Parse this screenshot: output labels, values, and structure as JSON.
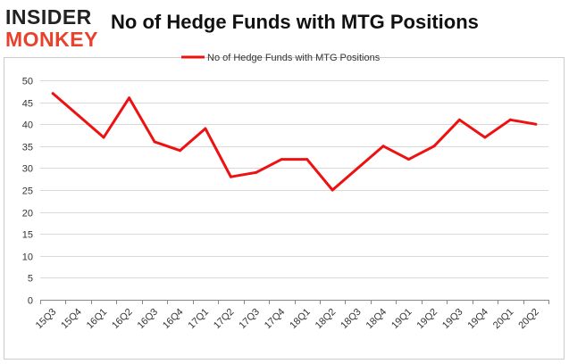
{
  "logo": {
    "line1": "INSIDER",
    "line2": "MONKEY"
  },
  "colors": {
    "series": "#ee1111",
    "grid": "#d9d9d9",
    "axis": "#888888",
    "logo_accent": "#e8412c"
  },
  "chart_data": {
    "type": "line",
    "title": "No of Hedge Funds with MTG Positions",
    "legend_position": "top-center",
    "grid": true,
    "ylim": [
      0,
      50
    ],
    "yticks": [
      0,
      5,
      10,
      15,
      20,
      25,
      30,
      35,
      40,
      45,
      50
    ],
    "categories": [
      "15Q3",
      "15Q4",
      "16Q1",
      "16Q2",
      "16Q3",
      "16Q4",
      "17Q1",
      "17Q2",
      "17Q3",
      "17Q4",
      "18Q1",
      "18Q2",
      "18Q3",
      "18Q4",
      "19Q1",
      "19Q2",
      "19Q3",
      "19Q4",
      "20Q1",
      "20Q2"
    ],
    "series": [
      {
        "name": "No of Hedge Funds with MTG Positions",
        "values": [
          47,
          42,
          37,
          46,
          36,
          34,
          39,
          28,
          29,
          32,
          32,
          25,
          30,
          35,
          32,
          35,
          41,
          37,
          41,
          40
        ]
      }
    ]
  }
}
